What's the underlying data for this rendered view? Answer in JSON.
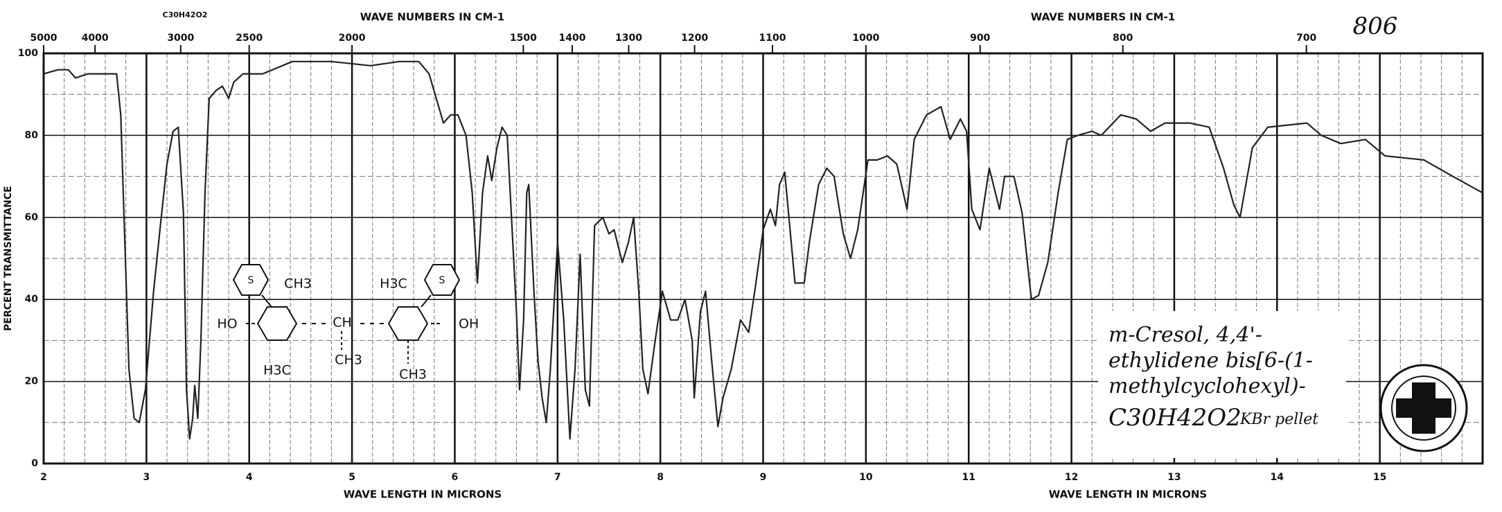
{
  "chart_data": {
    "type": "line",
    "formula_top": "C30H42O2",
    "catalog_number": "806",
    "x2label": [
      "WAVE NUMBERS IN CM-1",
      "WAVE NUMBERS IN CM-1"
    ],
    "xlabel": [
      "WAVE LENGTH IN MICRONS",
      "WAVE LENGTH IN MICRONS"
    ],
    "ylabel": "PERCENT TRANSMITTANCE",
    "compound_name": [
      "m-Cresol, 4,4'-",
      "ethylidene bis[6-(1-",
      "methylcyclohexyl)-"
    ],
    "formula": "C30H42O2",
    "sample_prep": "KBr pellet",
    "structure_labels": [
      "S",
      "CH3",
      "HO",
      "CH",
      "CH3",
      "H3C",
      "S",
      "OH",
      "H3C",
      "CH3"
    ],
    "color": "#222222",
    "grid": true,
    "xlim": [
      2,
      16
    ],
    "ylim": [
      0,
      100
    ],
    "xticks": [
      2,
      3,
      4,
      5,
      6,
      7,
      8,
      9,
      10,
      11,
      12,
      13,
      14,
      15
    ],
    "yticks": [
      0,
      20,
      40,
      60,
      80,
      100
    ],
    "x2ticks": [
      5000,
      4000,
      3000,
      2500,
      2000,
      1500,
      1400,
      1300,
      1200,
      1100,
      1000,
      900,
      800,
      700
    ],
    "x": [
      2.0,
      2.14,
      2.24,
      2.31,
      2.43,
      2.71,
      2.75,
      2.79,
      2.83,
      2.88,
      2.93,
      2.99,
      3.07,
      3.14,
      3.2,
      3.26,
      3.31,
      3.36,
      3.39,
      3.42,
      3.45,
      3.47,
      3.5,
      3.53,
      3.57,
      3.61,
      3.68,
      3.74,
      3.8,
      3.85,
      3.94,
      4.13,
      4.42,
      4.8,
      5.18,
      5.46,
      5.65,
      5.75,
      5.82,
      5.89,
      5.96,
      6.03,
      6.11,
      6.17,
      6.22,
      6.27,
      6.32,
      6.36,
      6.41,
      6.46,
      6.51,
      6.55,
      6.6,
      6.63,
      6.67,
      6.7,
      6.72,
      6.77,
      6.81,
      6.85,
      6.89,
      6.93,
      7.0,
      7.06,
      7.12,
      7.17,
      7.22,
      7.27,
      7.31,
      7.36,
      7.44,
      7.5,
      7.55,
      7.63,
      7.69,
      7.74,
      7.79,
      7.83,
      7.88,
      7.95,
      8.02,
      8.1,
      8.17,
      8.24,
      8.31,
      8.33,
      8.39,
      8.44,
      8.5,
      8.56,
      8.61,
      8.69,
      8.78,
      8.86,
      8.93,
      9.0,
      9.07,
      9.12,
      9.16,
      9.21,
      9.31,
      9.4,
      9.45,
      9.54,
      9.62,
      9.69,
      9.78,
      9.85,
      9.92,
      10.02,
      10.11,
      10.21,
      10.3,
      10.4,
      10.47,
      10.59,
      10.73,
      10.82,
      10.92,
      10.98,
      11.03,
      11.11,
      11.2,
      11.25,
      11.3,
      11.35,
      11.44,
      11.52,
      11.61,
      11.68,
      11.77,
      11.87,
      11.96,
      12.06,
      12.2,
      12.29,
      12.48,
      12.63,
      12.77,
      12.91,
      13.15,
      13.34,
      13.48,
      13.58,
      13.64,
      13.76,
      13.91,
      14.29,
      14.43,
      14.62,
      14.86,
      15.05,
      15.43,
      15.71,
      16.0
    ],
    "values": [
      95,
      96,
      96,
      94,
      95,
      95,
      85,
      54,
      23,
      11,
      10,
      18,
      42,
      59,
      73,
      81,
      82,
      61,
      18,
      6,
      11,
      19,
      11,
      30,
      66,
      89,
      91,
      92,
      89,
      93,
      95,
      95,
      98,
      98,
      97,
      98,
      98,
      95,
      89,
      83,
      85,
      85,
      80,
      66,
      44,
      66,
      75,
      69,
      77,
      82,
      80,
      61,
      37,
      18,
      35,
      66,
      68,
      42,
      25,
      16,
      10,
      23,
      54,
      35,
      6,
      23,
      51,
      18,
      14,
      58,
      60,
      56,
      57,
      49,
      54,
      60,
      42,
      23,
      17,
      30,
      42,
      35,
      35,
      40,
      30,
      16,
      37,
      42,
      25,
      9,
      16,
      23,
      35,
      32,
      44,
      57,
      62,
      58,
      68,
      71,
      44,
      44,
      54,
      68,
      72,
      70,
      56,
      50,
      57,
      74,
      74,
      75,
      73,
      62,
      79,
      85,
      87,
      79,
      84,
      81,
      62,
      57,
      72,
      67,
      62,
      70,
      70,
      61,
      40,
      41,
      49,
      66,
      79,
      80,
      81,
      80,
      85,
      84,
      81,
      83,
      83,
      82,
      72,
      63,
      60,
      77,
      82,
      83,
      80,
      78,
      79,
      75,
      74,
      70,
      66
    ]
  }
}
